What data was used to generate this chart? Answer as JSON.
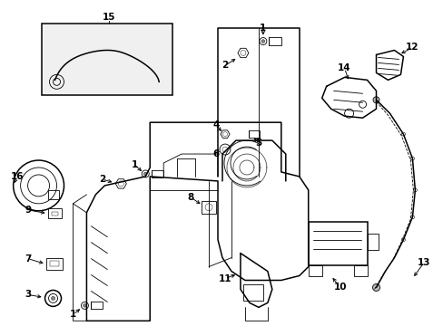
{
  "background_color": "#ffffff",
  "line_color": "#000000",
  "fig_width": 4.89,
  "fig_height": 3.6,
  "dpi": 100,
  "label_fontsize": 7.5,
  "lw_main": 1.1,
  "lw_thin": 0.6
}
